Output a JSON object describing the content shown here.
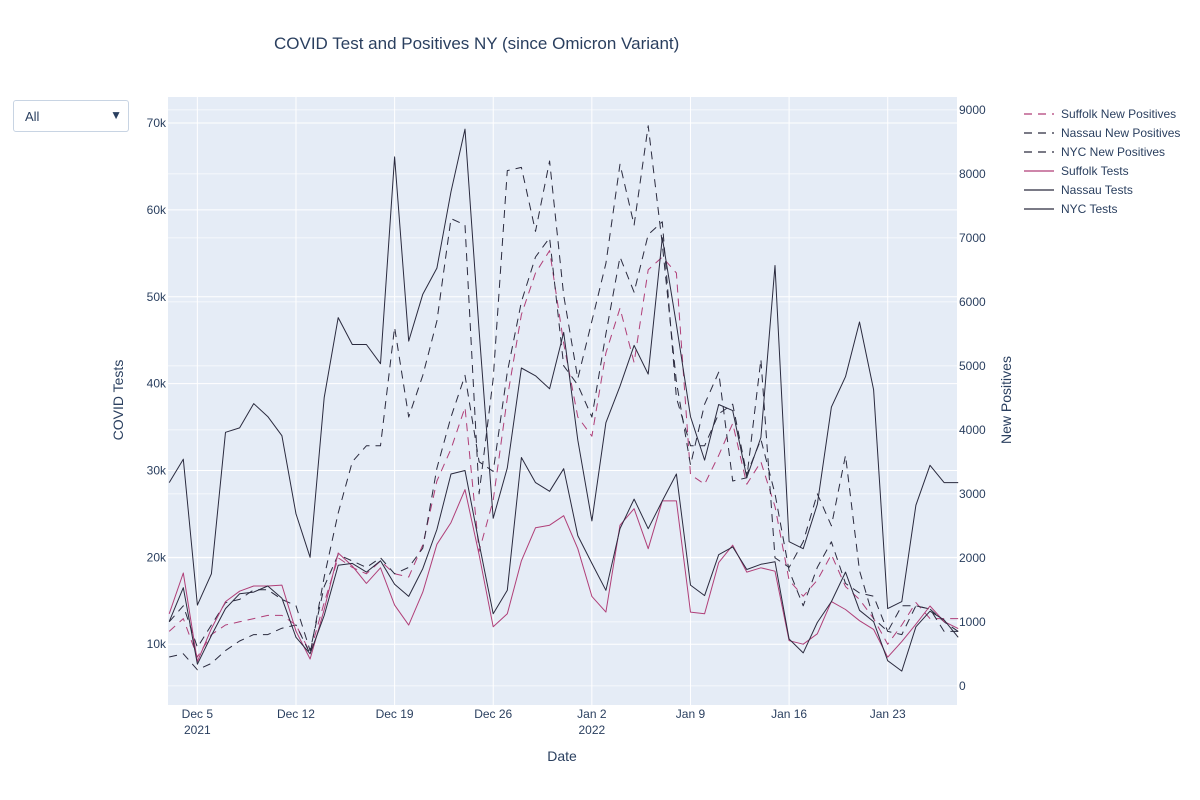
{
  "dropdown": {
    "selected": "All",
    "arrow_icon": "caret-down-icon"
  },
  "chart_data": {
    "type": "line",
    "title": "COVID Test and Positives NY (since Omicron Variant)",
    "xlabel": "Date",
    "ylabel": "COVID Tests",
    "y2label": "New Positives",
    "x": [
      "2021-12-03",
      "2021-12-04",
      "2021-12-05",
      "2021-12-06",
      "2021-12-07",
      "2021-12-08",
      "2021-12-09",
      "2021-12-10",
      "2021-12-11",
      "2021-12-12",
      "2021-12-13",
      "2021-12-14",
      "2021-12-15",
      "2021-12-16",
      "2021-12-17",
      "2021-12-18",
      "2021-12-19",
      "2021-12-20",
      "2021-12-21",
      "2021-12-22",
      "2021-12-23",
      "2021-12-24",
      "2021-12-25",
      "2021-12-26",
      "2021-12-27",
      "2021-12-28",
      "2021-12-29",
      "2021-12-30",
      "2021-12-31",
      "2022-01-01",
      "2022-01-02",
      "2022-01-03",
      "2022-01-04",
      "2022-01-05",
      "2022-01-06",
      "2022-01-07",
      "2022-01-08",
      "2022-01-09",
      "2022-01-10",
      "2022-01-11",
      "2022-01-12",
      "2022-01-13",
      "2022-01-14",
      "2022-01-15",
      "2022-01-16",
      "2022-01-17",
      "2022-01-18",
      "2022-01-19",
      "2022-01-20",
      "2022-01-21",
      "2022-01-22",
      "2022-01-23",
      "2022-01-24",
      "2022-01-25",
      "2022-01-26",
      "2022-01-27",
      "2022-01-28"
    ],
    "x_ticks": [
      {
        "date": "2021-12-05",
        "label": "Dec 5",
        "sub": "2021"
      },
      {
        "date": "2021-12-12",
        "label": "Dec 12",
        "sub": ""
      },
      {
        "date": "2021-12-19",
        "label": "Dec 19",
        "sub": ""
      },
      {
        "date": "2021-12-26",
        "label": "Dec 26",
        "sub": ""
      },
      {
        "date": "2022-01-02",
        "label": "Jan 2",
        "sub": "2022"
      },
      {
        "date": "2022-01-09",
        "label": "Jan 9",
        "sub": ""
      },
      {
        "date": "2022-01-16",
        "label": "Jan 16",
        "sub": ""
      },
      {
        "date": "2022-01-23",
        "label": "Jan 23",
        "sub": ""
      }
    ],
    "xlim": [
      "2021-12-02T22:00",
      "2022-01-27T22:00"
    ],
    "ylim": [
      3000,
      73000
    ],
    "y_ticks": [
      10000,
      20000,
      30000,
      40000,
      50000,
      60000,
      70000
    ],
    "y_tick_labels": [
      "10k",
      "20k",
      "30k",
      "40k",
      "50k",
      "60k",
      "70k"
    ],
    "y2lim": [
      -300,
      9200
    ],
    "y2_ticks": [
      0,
      1000,
      2000,
      3000,
      4000,
      5000,
      6000,
      7000,
      8000,
      9000
    ],
    "grid": true,
    "legend_position": "top-right",
    "series": [
      {
        "name": "Suffolk New Positives",
        "axis": "y2",
        "dash": true,
        "color": "#b03f78",
        "values": [
          850,
          1050,
          450,
          800,
          950,
          1000,
          1050,
          1100,
          1100,
          950,
          520,
          1300,
          2000,
          1850,
          1750,
          1950,
          1750,
          1700,
          2200,
          3200,
          3700,
          4350,
          2100,
          2900,
          4500,
          5800,
          6450,
          6800,
          5350,
          4200,
          3900,
          5200,
          5900,
          5050,
          6500,
          6700,
          6450,
          3300,
          3150,
          3600,
          4100,
          3150,
          3500,
          2800,
          1650,
          1400,
          1650,
          2050,
          1550,
          1350,
          1050,
          650,
          950,
          1300,
          1050,
          1050,
          1050
        ]
      },
      {
        "name": "Nassau New Positives",
        "axis": "y2",
        "dash": true,
        "color": "#2a2a3e",
        "values": [
          1000,
          1250,
          600,
          950,
          1300,
          1350,
          1500,
          1500,
          1350,
          1250,
          550,
          1550,
          2050,
          1950,
          1850,
          2000,
          1750,
          1850,
          2150,
          3400,
          4200,
          4850,
          3500,
          3350,
          4900,
          6000,
          6700,
          7000,
          5000,
          4700,
          4200,
          5500,
          6700,
          6150,
          7050,
          7250,
          4500,
          3750,
          3750,
          4250,
          4400,
          3300,
          3850,
          3000,
          1800,
          1250,
          1850,
          2250,
          1600,
          1450,
          1400,
          850,
          800,
          1250,
          1200,
          850,
          850
        ]
      },
      {
        "name": "NYC New Positives",
        "axis": "y2",
        "dash": true,
        "color": "#2a2a3e",
        "values": [
          450,
          500,
          250,
          350,
          550,
          700,
          800,
          800,
          900,
          950,
          500,
          1700,
          2700,
          3500,
          3750,
          3750,
          5600,
          4200,
          4850,
          5700,
          7300,
          7200,
          3000,
          4800,
          8050,
          8100,
          7100,
          8200,
          6100,
          4800,
          5700,
          6600,
          8150,
          7200,
          8750,
          6900,
          4750,
          3450,
          4400,
          4900,
          3200,
          3250,
          5100,
          2000,
          1850,
          2250,
          3000,
          2500,
          3600,
          1800,
          1050,
          850,
          1250,
          1250,
          1200,
          1000,
          850
        ]
      },
      {
        "name": "Suffolk Tests",
        "axis": "y",
        "dash": false,
        "color": "#b03f78",
        "values": [
          13500,
          18200,
          8000,
          11800,
          14900,
          16100,
          16700,
          16700,
          16800,
          11500,
          8300,
          14000,
          20500,
          19000,
          17000,
          18800,
          14500,
          12200,
          16000,
          21500,
          24000,
          27800,
          20300,
          12000,
          13500,
          19600,
          23400,
          23700,
          24800,
          21000,
          15500,
          13700,
          23700,
          25600,
          21000,
          26500,
          26500,
          13700,
          13500,
          19400,
          21400,
          18300,
          18800,
          18400,
          10400,
          10000,
          11200,
          14900,
          14000,
          12700,
          11700,
          8500,
          10300,
          12300,
          14400,
          12600,
          11800
        ]
      },
      {
        "name": "Nassau Tests",
        "axis": "y",
        "dash": false,
        "color": "#2a2a3e",
        "values": [
          12600,
          16500,
          7700,
          11000,
          14100,
          15800,
          16000,
          16700,
          15300,
          10800,
          8900,
          13300,
          19100,
          19300,
          18300,
          19600,
          16900,
          15500,
          18700,
          23200,
          29600,
          30000,
          21600,
          13500,
          16200,
          31500,
          28600,
          27600,
          30200,
          22500,
          19300,
          16200,
          23300,
          26700,
          23300,
          26500,
          29600,
          16800,
          15600,
          20300,
          21200,
          18600,
          19200,
          19500,
          10600,
          9000,
          12500,
          14900,
          18300,
          13900,
          12600,
          8100,
          6900,
          12000,
          13800,
          12800,
          10800
        ]
      },
      {
        "name": "NYC Tests",
        "axis": "y",
        "dash": false,
        "color": "#2a2a3e",
        "values": [
          28600,
          31300,
          14500,
          18100,
          34400,
          34900,
          37700,
          36200,
          34000,
          25000,
          20000,
          38400,
          47600,
          44500,
          44500,
          42300,
          66100,
          44900,
          50300,
          53300,
          62100,
          69300,
          46100,
          24500,
          30300,
          41800,
          40900,
          39400,
          45900,
          33500,
          24200,
          35500,
          39700,
          44400,
          41100,
          56800,
          46800,
          36200,
          31200,
          37600,
          36900,
          29200,
          33800,
          53600,
          21800,
          21000,
          26100,
          37300,
          40800,
          47100,
          39300,
          14100,
          14900,
          26000,
          30600,
          28600,
          28600
        ]
      }
    ]
  }
}
